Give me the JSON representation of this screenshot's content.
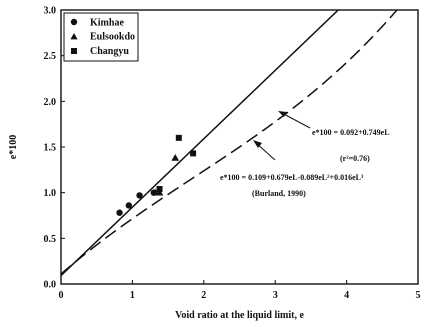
{
  "chart_data": {
    "type": "scatter",
    "xlabel": "Void ratio at the liquid limit, e",
    "ylabel": "e*100",
    "xlim": [
      0,
      5
    ],
    "ylim": [
      0,
      3
    ],
    "xticks": [
      "0",
      "1",
      "2",
      "3",
      "4",
      "5"
    ],
    "yticks": [
      "0.0",
      "0.5",
      "1.0",
      "1.5",
      "2.0",
      "2.5",
      "3.0"
    ],
    "grid": false,
    "legend_position": "top-left",
    "series": [
      {
        "name": "Kimhae",
        "marker": "circle",
        "points": [
          [
            0.82,
            0.78
          ],
          [
            0.95,
            0.86
          ],
          [
            1.1,
            0.97
          ],
          [
            1.3,
            1.0
          ]
        ]
      },
      {
        "name": "Eulsookdo",
        "marker": "triangle",
        "points": [
          [
            1.32,
            1.0
          ],
          [
            1.38,
            1.0
          ],
          [
            1.6,
            1.38
          ]
        ]
      },
      {
        "name": "Changyu",
        "marker": "square",
        "points": [
          [
            1.38,
            1.04
          ],
          [
            1.65,
            1.6
          ],
          [
            1.85,
            1.43
          ]
        ]
      }
    ],
    "fit_lines": [
      {
        "style": "solid",
        "equation": "e*100 = 0.092+0.749eL",
        "stat": "(r²=0.76)",
        "intercept": 0.092,
        "coefs": [
          0.749
        ]
      },
      {
        "style": "dashed",
        "equation": "e*100 = 0.109+0.679eL-0.089eL²+0.016eL³",
        "citation": "(Burland, 1990)",
        "intercept": 0.109,
        "coefs": [
          0.679,
          -0.089,
          0.016
        ]
      }
    ]
  }
}
